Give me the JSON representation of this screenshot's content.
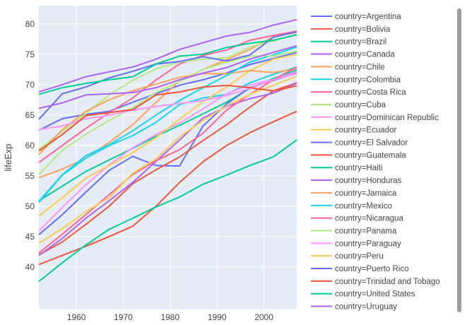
{
  "chart_data": {
    "type": "line",
    "title": "",
    "xlabel": "",
    "ylabel": "lifeExp",
    "xlim": [
      1952,
      2007
    ],
    "ylim": [
      33,
      83
    ],
    "x_ticks": [
      1960,
      1970,
      1980,
      1990,
      2000
    ],
    "y_ticks": [
      40,
      45,
      50,
      55,
      60,
      65,
      70,
      75,
      80
    ],
    "grid": true,
    "legend_position": "right",
    "x": [
      1952,
      1957,
      1962,
      1967,
      1972,
      1977,
      1982,
      1987,
      1992,
      1997,
      2002,
      2007
    ],
    "series": [
      {
        "name": "country=Argentina",
        "color": "#636efa",
        "values": [
          62.5,
          64.4,
          65.1,
          65.6,
          67.1,
          68.5,
          69.9,
          70.8,
          71.9,
          73.3,
          74.3,
          75.3
        ]
      },
      {
        "name": "country=Bolivia",
        "color": "#EF553B",
        "values": [
          40.4,
          41.9,
          43.4,
          45.0,
          46.7,
          50.0,
          53.9,
          57.3,
          59.96,
          62.1,
          63.9,
          65.6
        ]
      },
      {
        "name": "country=Brazil",
        "color": "#00cc96",
        "values": [
          50.9,
          53.3,
          55.7,
          57.6,
          59.5,
          61.5,
          63.3,
          65.2,
          67.1,
          69.4,
          71.0,
          72.4
        ]
      },
      {
        "name": "country=Canada",
        "color": "#ab63fa",
        "values": [
          68.8,
          70.0,
          71.3,
          72.1,
          72.9,
          74.2,
          75.8,
          76.9,
          78.0,
          78.6,
          79.8,
          80.7
        ]
      },
      {
        "name": "country=Chile",
        "color": "#FFA15A",
        "values": [
          54.7,
          56.1,
          57.9,
          60.5,
          63.4,
          67.1,
          70.6,
          72.5,
          74.1,
          75.8,
          77.9,
          78.6
        ]
      },
      {
        "name": "country=Colombia",
        "color": "#19d3f3",
        "values": [
          50.6,
          55.1,
          57.9,
          59.96,
          61.6,
          63.8,
          66.7,
          67.8,
          68.4,
          70.3,
          71.7,
          72.9
        ]
      },
      {
        "name": "country=Costa Rica",
        "color": "#FF6692",
        "values": [
          57.2,
          60.0,
          62.8,
          65.4,
          67.8,
          70.8,
          73.4,
          74.8,
          75.7,
          77.3,
          78.1,
          78.8
        ]
      },
      {
        "name": "country=Cuba",
        "color": "#B6E880",
        "values": [
          59.4,
          62.3,
          65.2,
          68.3,
          70.7,
          72.6,
          73.7,
          74.2,
          74.4,
          76.2,
          77.2,
          78.3
        ]
      },
      {
        "name": "country=Dominican Republic",
        "color": "#FF97FF",
        "values": [
          45.9,
          49.8,
          53.5,
          56.8,
          59.6,
          61.8,
          63.7,
          66.0,
          68.5,
          69.96,
          70.8,
          72.2
        ]
      },
      {
        "name": "country=Ecuador",
        "color": "#FECB52",
        "values": [
          48.4,
          51.4,
          54.6,
          56.7,
          58.8,
          61.3,
          64.3,
          67.2,
          69.6,
          72.3,
          74.2,
          75.0
        ]
      },
      {
        "name": "country=El Salvador",
        "color": "#636efa",
        "values": [
          45.3,
          48.6,
          52.3,
          55.9,
          58.2,
          56.7,
          56.6,
          63.2,
          66.8,
          69.5,
          70.7,
          71.9
        ]
      },
      {
        "name": "country=Guatemala",
        "color": "#EF553B",
        "values": [
          42.0,
          44.1,
          47.0,
          50.0,
          53.7,
          56.0,
          58.1,
          60.8,
          63.4,
          66.3,
          68.98,
          70.3
        ]
      },
      {
        "name": "country=Haiti",
        "color": "#00cc96",
        "values": [
          37.6,
          40.7,
          43.6,
          46.2,
          48.0,
          49.9,
          51.5,
          53.6,
          55.1,
          56.7,
          58.1,
          60.9
        ]
      },
      {
        "name": "country=Honduras",
        "color": "#ab63fa",
        "values": [
          41.9,
          44.7,
          48.0,
          50.9,
          53.9,
          57.4,
          60.9,
          64.5,
          66.4,
          67.7,
          68.6,
          70.2
        ]
      },
      {
        "name": "country=Jamaica",
        "color": "#FFA15A",
        "values": [
          58.5,
          62.6,
          65.6,
          67.5,
          69.0,
          70.1,
          71.2,
          71.8,
          71.8,
          72.3,
          72.0,
          72.6
        ]
      },
      {
        "name": "country=Mexico",
        "color": "#19d3f3",
        "values": [
          50.8,
          55.2,
          58.3,
          60.1,
          62.4,
          65.0,
          67.4,
          69.5,
          71.5,
          73.7,
          74.9,
          76.2
        ]
      },
      {
        "name": "country=Nicaragua",
        "color": "#FF6692",
        "values": [
          42.3,
          45.4,
          48.6,
          51.9,
          55.2,
          57.5,
          59.3,
          62.0,
          65.8,
          68.4,
          70.8,
          72.9
        ]
      },
      {
        "name": "country=Panama",
        "color": "#B6E880",
        "values": [
          55.2,
          59.2,
          61.8,
          64.1,
          66.2,
          68.7,
          70.5,
          72.5,
          73.7,
          74.7,
          74.7,
          75.5
        ]
      },
      {
        "name": "country=Paraguay",
        "color": "#FF97FF",
        "values": [
          62.6,
          63.2,
          64.4,
          64.95,
          65.8,
          66.4,
          66.9,
          67.4,
          68.2,
          69.4,
          70.8,
          71.8
        ]
      },
      {
        "name": "country=Peru",
        "color": "#FECB52",
        "values": [
          43.9,
          46.3,
          49.1,
          51.4,
          55.4,
          57.8,
          61.4,
          64.1,
          66.5,
          68.4,
          69.9,
          71.4
        ]
      },
      {
        "name": "country=Puerto Rico",
        "color": "#636efa",
        "values": [
          64.3,
          68.5,
          69.6,
          71.1,
          72.2,
          73.4,
          73.8,
          74.6,
          73.9,
          74.9,
          77.8,
          78.7
        ]
      },
      {
        "name": "country=Trinidad and Tobago",
        "color": "#EF553B",
        "values": [
          59.1,
          61.8,
          64.9,
          65.4,
          65.9,
          68.3,
          68.8,
          69.6,
          69.9,
          69.5,
          68.98,
          69.8
        ]
      },
      {
        "name": "country=United States",
        "color": "#00cc96",
        "values": [
          68.4,
          69.5,
          70.2,
          70.8,
          71.3,
          73.4,
          74.7,
          75.0,
          76.1,
          76.8,
          77.3,
          78.2
        ]
      },
      {
        "name": "country=Uruguay",
        "color": "#ab63fa",
        "values": [
          66.1,
          67.0,
          68.3,
          68.5,
          68.7,
          69.5,
          70.8,
          71.9,
          72.8,
          74.2,
          75.3,
          76.4
        ]
      }
    ]
  }
}
